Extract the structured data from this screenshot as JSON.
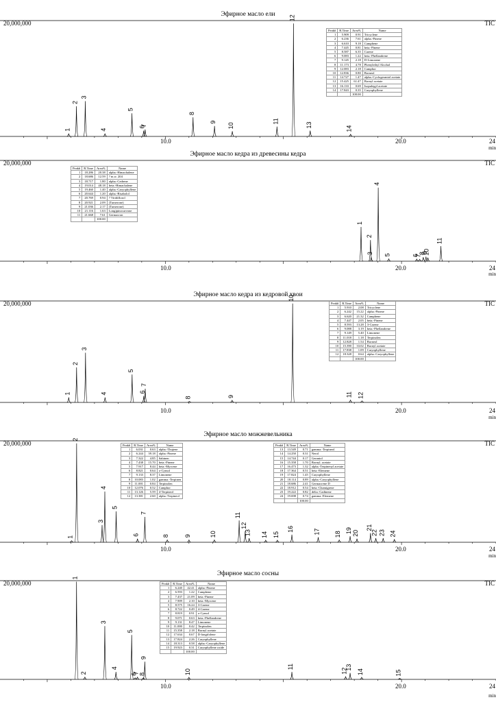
{
  "chart_data": [
    {
      "type": "line",
      "title": "Эфирное масло ели",
      "ymax_label": "20,000,000",
      "detector": "TIC",
      "xlabel": "min",
      "x_ticks": [
        "10.0",
        "20.0",
        "24"
      ],
      "xlim": [
        3,
        24
      ],
      "ylim": [
        0,
        20000000
      ],
      "peaks": [
        {
          "label": "1",
          "x": 5.909,
          "y": 500000
        },
        {
          "label": "2",
          "x": 6.236,
          "y": 5200000
        },
        {
          "label": "3",
          "x": 6.61,
          "y": 6100000
        },
        {
          "label": "4",
          "x": 7.445,
          "y": 500000
        },
        {
          "label": "5",
          "x": 8.587,
          "y": 4000000
        },
        {
          "label": "6",
          "x": 9.083,
          "y": 1000000
        },
        {
          "label": "7",
          "x": 9.145,
          "y": 1200000
        },
        {
          "label": "8",
          "x": 11.173,
          "y": 3300000
        },
        {
          "label": "9",
          "x": 12.083,
          "y": 1800000
        },
        {
          "label": "10",
          "x": 12.836,
          "y": 900000
        },
        {
          "label": "11",
          "x": 14.727,
          "y": 1700000
        },
        {
          "label": "12",
          "x": 15.425,
          "y": 19500000
        },
        {
          "label": "13",
          "x": 16.133,
          "y": 1000000
        },
        {
          "label": "14",
          "x": 17.843,
          "y": 400000
        }
      ],
      "table": {
        "headers": [
          "Peak#",
          "R.Time",
          "Area%",
          "Name"
        ],
        "rows": [
          [
            "1",
            "5.909",
            "0.91",
            "Tricyclene"
          ],
          [
            "2",
            "6.236",
            "7.61",
            "alpha.-Pinene"
          ],
          [
            "3",
            "6.610",
            "9.18",
            "Camphene"
          ],
          [
            "4",
            "7.445",
            "0.81",
            "beta.-Pinene"
          ],
          [
            "5",
            "8.587",
            "6.35",
            "Carene"
          ],
          [
            "6",
            "9.083",
            "1.22",
            "beta.-Phellandrene"
          ],
          [
            "7",
            "9.145",
            "2.18",
            "D-Limonene"
          ],
          [
            "8",
            "11.173",
            "4.78",
            "Phenylethyl Alcohol"
          ],
          [
            "9",
            "12.083",
            "2.18",
            "Camphor"
          ],
          [
            "10",
            "12.836",
            "0.80",
            "Borneol"
          ],
          [
            "11",
            "14.727",
            "1.47",
            "alpha.-Cyclogeraniol acetate"
          ],
          [
            "12",
            "15.425",
            "61.47",
            "Bornyl acetate"
          ],
          [
            "13",
            "16.133",
            "0.69",
            "Isopulegyl acetate"
          ],
          [
            "14",
            "17.843",
            "0.35",
            "Caryophyllene"
          ]
        ],
        "total": "100.00"
      }
    },
    {
      "type": "line",
      "title": "Эфирное масло кедра из древесины кедра",
      "ymax_label": "20,000,000",
      "detector": "TIC",
      "xlabel": "min",
      "x_ticks": [
        "10.0",
        "20.0",
        "24"
      ],
      "xlim": [
        3,
        24
      ],
      "ylim": [
        0,
        20000000
      ],
      "peaks": [
        {
          "label": "1",
          "x": 18.286,
          "y": 6800000
        },
        {
          "label": "2",
          "x": 18.686,
          "y": 4200000
        },
        {
          "label": "3",
          "x": 18.717,
          "y": 800000
        },
        {
          "label": "4",
          "x": 19.014,
          "y": 14600000
        },
        {
          "label": "5",
          "x": 19.46,
          "y": 500000
        },
        {
          "label": "6",
          "x": 20.644,
          "y": 400000
        },
        {
          "label": "7",
          "x": 20.769,
          "y": 350000
        },
        {
          "label": "8",
          "x": 20.921,
          "y": 800000
        },
        {
          "label": "9",
          "x": 21.036,
          "y": 900000
        },
        {
          "label": "10",
          "x": 21.116,
          "y": 700000
        },
        {
          "label": "11",
          "x": 21.668,
          "y": 3000000
        }
      ],
      "table": {
        "headers": [
          "Peak#",
          "R.Time",
          "Area%",
          "Name"
        ],
        "rows": [
          [
            "1",
            "18.286",
            "20.38",
            "alpha.-Himachalene"
          ],
          [
            "2",
            "18.686",
            "12.59",
            "? m.w. 204"
          ],
          [
            "3",
            "18.717",
            "1.80",
            "alpha.-Cedrene"
          ],
          [
            "4",
            "19.014",
            "48.18",
            "beta.-Himachalene"
          ],
          [
            "5",
            "19.460",
            "1.40",
            "alpha.-Caryophyllene"
          ],
          [
            "6",
            "20.644",
            "1.20",
            "alpha.-Bisabolol"
          ],
          [
            "7",
            "20.769",
            "0.94",
            "? Viridiflorol"
          ],
          [
            "8",
            "20.921",
            "2.09",
            "(Tumerone)"
          ],
          [
            "9",
            "21.036",
            "2.17",
            "(Tumerone)"
          ],
          [
            "10",
            "21.116",
            "1.63",
            "Longipinocarvone"
          ],
          [
            "11",
            "21.668",
            "7.61",
            "Germacron"
          ]
        ],
        "total": "100.00"
      }
    },
    {
      "type": "line",
      "title": "Эфирное масло кедра из кедровой хвои",
      "ymax_label": "20,000,000",
      "detector": "TIC",
      "xlabel": "min",
      "x_ticks": [
        "10.0",
        "20.0",
        "24"
      ],
      "xlim": [
        3,
        24
      ],
      "ylim": [
        0,
        20000000
      ],
      "peaks": [
        {
          "label": "1",
          "x": 5.91,
          "y": 1000000
        },
        {
          "label": "2",
          "x": 6.242,
          "y": 6900000
        },
        {
          "label": "3",
          "x": 6.62,
          "y": 9800000
        },
        {
          "label": "4",
          "x": 7.447,
          "y": 1000000
        },
        {
          "label": "5",
          "x": 8.593,
          "y": 5500000
        },
        {
          "label": "6",
          "x": 9.088,
          "y": 1300000
        },
        {
          "label": "7",
          "x": 9.149,
          "y": 2700000
        },
        {
          "label": "8",
          "x": 11.018,
          "y": 200000
        },
        {
          "label": "9",
          "x": 12.828,
          "y": 400000
        },
        {
          "label": "10",
          "x": 15.39,
          "y": 19500000
        },
        {
          "label": "11",
          "x": 17.838,
          "y": 500000
        },
        {
          "label": "12",
          "x": 18.328,
          "y": 300000
        }
      ],
      "table": {
        "headers": [
          "Peak#",
          "R.Time",
          "Area%",
          "Name"
        ],
        "rows": [
          [
            "1",
            "5.910",
            "2.08",
            "Tricyclene"
          ],
          [
            "2",
            "6.242",
            "15.22",
            "alpha.-Pinene"
          ],
          [
            "3",
            "6.620",
            "21.32",
            "Camphene"
          ],
          [
            "4",
            "7.447",
            "2.05",
            "beta.-Pinene"
          ],
          [
            "5",
            "8.593",
            "13.28",
            "3-Carene"
          ],
          [
            "6",
            "9.088",
            "3.19",
            "beta.-Phellandrene"
          ],
          [
            "7",
            "9.149",
            "5.40",
            "Limonene"
          ],
          [
            "8",
            "11.018",
            "1.18",
            "Terpinolen"
          ],
          [
            "9",
            "12.828",
            "1.54",
            "Borneol"
          ],
          [
            "10",
            "15.390",
            "33.02",
            "Bornyl acetate"
          ],
          [
            "11",
            "17.838",
            "1.09",
            "Caryophyllene"
          ],
          [
            "12",
            "18.328",
            "0.64",
            "alpha.-Caryophyllene"
          ]
        ],
        "total": "100.00"
      }
    },
    {
      "type": "line",
      "title": "Эфирное масло можжевельника",
      "ymax_label": "20,000,000",
      "detector": "TIC",
      "xlabel": "min",
      "x_ticks": [
        "10.0",
        "20.0",
        "24"
      ],
      "xlim": [
        3,
        24
      ],
      "ylim": [
        0,
        20000000
      ],
      "peaks": [
        {
          "label": "1",
          "x": 6.031,
          "y": 300000
        },
        {
          "label": "2",
          "x": 6.244,
          "y": 19500000
        },
        {
          "label": "3",
          "x": 7.322,
          "y": 3400000
        },
        {
          "label": "4",
          "x": 7.438,
          "y": 10000000
        },
        {
          "label": "5",
          "x": 7.917,
          "y": 6100000
        },
        {
          "label": "6",
          "x": 8.821,
          "y": 700000
        },
        {
          "label": "7",
          "x": 9.133,
          "y": 5000000
        },
        {
          "label": "8",
          "x": 10.083,
          "y": 500000
        },
        {
          "label": "9",
          "x": 11.001,
          "y": 500000
        },
        {
          "label": "10",
          "x": 12.076,
          "y": 500000
        },
        {
          "label": "11",
          "x": 13.126,
          "y": 4300000
        },
        {
          "label": "12",
          "x": 13.381,
          "y": 2200000
        },
        {
          "label": "13",
          "x": 13.549,
          "y": 800000
        },
        {
          "label": "14",
          "x": 14.25,
          "y": 400000
        },
        {
          "label": "15",
          "x": 14.744,
          "y": 400000
        },
        {
          "label": "16",
          "x": 15.358,
          "y": 1500000
        },
        {
          "label": "17",
          "x": 16.473,
          "y": 1000000
        },
        {
          "label": "18",
          "x": 17.364,
          "y": 500000
        },
        {
          "label": "19",
          "x": 17.824,
          "y": 1200000
        },
        {
          "label": "20",
          "x": 18.114,
          "y": 700000
        },
        {
          "label": "21",
          "x": 18.686,
          "y": 1800000
        },
        {
          "label": "22",
          "x": 18.912,
          "y": 800000
        },
        {
          "label": "23",
          "x": 19.222,
          "y": 800000
        },
        {
          "label": "24",
          "x": 19.698,
          "y": 600000
        }
      ],
      "table": {
        "headers": [
          "Peak#",
          "R.Time",
          "Area%",
          "Name"
        ],
        "rows": [
          [
            "1",
            "6.031",
            "0.63",
            "alpha.-Thujene"
          ],
          [
            "2",
            "6.244",
            "39.18",
            "alpha.-Pinene"
          ],
          [
            "3",
            "7.322",
            "4.85",
            "Sabinen"
          ],
          [
            "4",
            "7.438",
            "15.70",
            "beta.-Pinene"
          ],
          [
            "5",
            "7.917",
            "8.44",
            "beta.-Myrcene"
          ],
          [
            "6",
            "8.821",
            "0.64",
            "o-Cymol"
          ],
          [
            "7",
            "9.133",
            "8.37",
            "Limonene"
          ],
          [
            "8",
            "10.083",
            "1.02",
            "gamma.-Terpinen"
          ],
          [
            "9",
            "11.001",
            "0.84",
            "Terpinolen"
          ],
          [
            "10",
            "12.076",
            "0.52",
            "Camphor"
          ],
          [
            "11",
            "13.126",
            "5.59",
            "4-Terpineol"
          ],
          [
            "12",
            "13.381",
            "2.60",
            "alpha.-Terpineol"
          ]
        ],
        "rows2": [
          [
            "13",
            "13.549",
            "0.71",
            "gamma.-Terpineol"
          ],
          [
            "14",
            "14.250",
            "0.31",
            "Nerol"
          ],
          [
            "15",
            "14.744",
            "0.17",
            "Geraniol"
          ],
          [
            "16",
            "15.358",
            "1.70",
            "Bornyl. acetate"
          ],
          [
            "17",
            "16.473",
            "1.32",
            "alpha.-Terpinenyl acetate"
          ],
          [
            "18",
            "17.364",
            "0.51",
            "beta.-Elemene"
          ],
          [
            "19",
            "17.824",
            "1.45",
            "Caryophyllene"
          ],
          [
            "20",
            "18.114",
            "0.89",
            "alpha.-Caryophyllene"
          ],
          [
            "21",
            "18.686",
            "2.41",
            "Germacrene D"
          ],
          [
            "22",
            "18.912",
            "0.54",
            "beta.-Chamigrene"
          ],
          [
            "23",
            "19.222",
            "0.82",
            "delta.-Cadinene"
          ],
          [
            "24",
            "19.698",
            "0.74",
            "gamma.-Elemene"
          ]
        ],
        "total": "100.00"
      }
    },
    {
      "type": "line",
      "title": "Эфирное масло сосны",
      "ymax_label": "20,000,000",
      "detector": "TIC",
      "xlabel": "min",
      "x_ticks": [
        "10.0",
        "20.0",
        "24"
      ],
      "xlim": [
        3,
        24
      ],
      "ylim": [
        0,
        20000000
      ],
      "peaks": [
        {
          "label": "1",
          "x": 6.24,
          "y": 19800000
        },
        {
          "label": "2",
          "x": 6.593,
          "y": 500000
        },
        {
          "label": "3",
          "x": 7.437,
          "y": 10800000
        },
        {
          "label": "4",
          "x": 7.909,
          "y": 1500000
        },
        {
          "label": "5",
          "x": 8.575,
          "y": 9000000
        },
        {
          "label": "6",
          "x": 8.722,
          "y": 300000
        },
        {
          "label": "7",
          "x": 8.819,
          "y": 500000
        },
        {
          "label": "8",
          "x": 9.071,
          "y": 300000
        },
        {
          "label": "9",
          "x": 9.131,
          "y": 3600000
        },
        {
          "label": "10",
          "x": 11.0,
          "y": 400000
        },
        {
          "label": "11",
          "x": 15.358,
          "y": 1500000
        },
        {
          "label": "12",
          "x": 17.634,
          "y": 600000
        },
        {
          "label": "13",
          "x": 17.824,
          "y": 1300000
        },
        {
          "label": "14",
          "x": 18.313,
          "y": 400000
        },
        {
          "label": "15",
          "x": 19.923,
          "y": 200000
        }
      ],
      "table": {
        "headers": [
          "Peak#",
          "R.Time",
          "Area%",
          "Name"
        ],
        "rows": [
          [
            "1",
            "6.240",
            "42.41",
            "alpha.-Pinene"
          ],
          [
            "2",
            "6.593",
            "1.22",
            "Camphene"
          ],
          [
            "3",
            "7.437",
            "21.09",
            "beta.-Pinene"
          ],
          [
            "4",
            "7.909",
            "2.10",
            "beta.-Myrcene"
          ],
          [
            "5",
            "8.575",
            "16.24",
            "3-Carene"
          ],
          [
            "6",
            "8.722",
            "0.49",
            "4-Carene"
          ],
          [
            "7",
            "8.819",
            "0.91",
            "o-Cymol"
          ],
          [
            "8",
            "9.071",
            "0.63",
            "beta.-Phellandrene"
          ],
          [
            "9",
            "9.131",
            "8.47",
            "Limonene"
          ],
          [
            "10",
            "11.000",
            "0.42",
            "Terpinolen"
          ],
          [
            "11",
            "15.358",
            "2.18",
            "Bornyl acetate"
          ],
          [
            "12",
            "17.634",
            "0.67",
            "D-longifolene"
          ],
          [
            "13",
            "17.824",
            "2.26",
            "Caryophyllene"
          ],
          [
            "14",
            "18.313",
            "0.58",
            "alpha.-Caryophyllene"
          ],
          [
            "15",
            "19.923",
            "0.31",
            "Caryophyllene oxide"
          ]
        ],
        "total": "100.00"
      }
    }
  ]
}
